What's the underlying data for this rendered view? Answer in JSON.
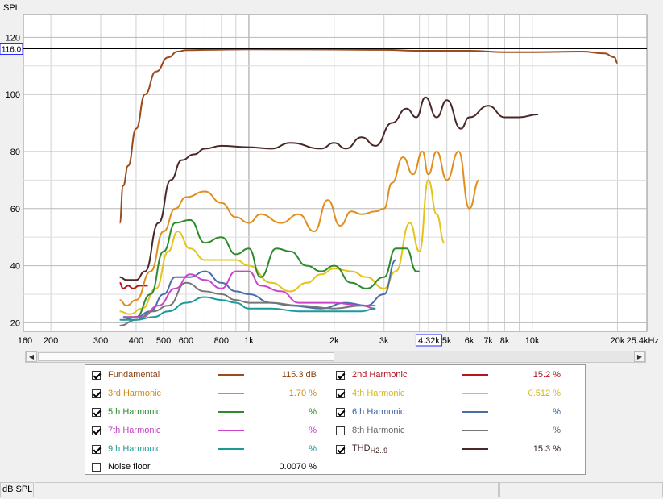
{
  "chart_data": {
    "type": "line",
    "ylabel": "SPL",
    "x_scale": "log",
    "xlim": [
      160,
      25400
    ],
    "ylim": [
      17,
      128
    ],
    "grid": true,
    "x_ticks": [
      160,
      200,
      300,
      400,
      500,
      600,
      800,
      1000,
      2000,
      3000,
      4000,
      5000,
      6000,
      7000,
      8000,
      10000,
      20000,
      25400
    ],
    "x_tick_labels": [
      "160",
      "200",
      "300",
      "400",
      "500",
      "600",
      "800",
      "1k",
      "2k",
      "3k",
      "",
      "5k",
      "6k",
      "7k",
      "8k",
      "10k",
      "20k",
      "25.4kHz"
    ],
    "y_ticks": [
      20,
      40,
      60,
      80,
      100,
      120
    ],
    "y_tick_labels": [
      "20",
      "40",
      "60",
      "80",
      "100",
      "120"
    ],
    "cursor": {
      "x": 4320,
      "y": 116.0,
      "x_label": "4.32k",
      "y_label": "116.0"
    },
    "series": [
      {
        "name": "Fundamental",
        "color": "#9b4a1a",
        "points": [
          [
            350,
            55
          ],
          [
            360,
            68
          ],
          [
            375,
            75
          ],
          [
            400,
            88
          ],
          [
            430,
            100
          ],
          [
            470,
            108
          ],
          [
            520,
            113
          ],
          [
            560,
            115
          ],
          [
            600,
            115.5
          ],
          [
            700,
            115.6
          ],
          [
            1000,
            115.8
          ],
          [
            2000,
            115.7
          ],
          [
            3000,
            115.6
          ],
          [
            4000,
            115.3
          ],
          [
            6000,
            115.3
          ],
          [
            8000,
            114.8
          ],
          [
            10000,
            114.8
          ],
          [
            15000,
            115.0
          ],
          [
            18000,
            114.4
          ],
          [
            19500,
            113
          ],
          [
            20000,
            111
          ]
        ]
      },
      {
        "name": "2nd Harmonic",
        "color": "#b8141e",
        "points": [
          [
            350,
            34
          ],
          [
            360,
            32
          ],
          [
            375,
            33
          ],
          [
            390,
            32
          ],
          [
            410,
            33
          ],
          [
            440,
            33
          ]
        ]
      },
      {
        "name": "3rd Harmonic",
        "color": "#e08f1e",
        "points": [
          [
            350,
            28
          ],
          [
            370,
            26
          ],
          [
            400,
            28
          ],
          [
            450,
            38
          ],
          [
            500,
            52
          ],
          [
            550,
            60
          ],
          [
            600,
            64
          ],
          [
            700,
            66
          ],
          [
            800,
            62
          ],
          [
            900,
            57
          ],
          [
            1000,
            55
          ],
          [
            1100,
            58
          ],
          [
            1300,
            55
          ],
          [
            1500,
            58
          ],
          [
            1700,
            52
          ],
          [
            1900,
            63
          ],
          [
            2100,
            54
          ],
          [
            2300,
            59
          ],
          [
            2500,
            58
          ],
          [
            2800,
            59
          ],
          [
            3000,
            60
          ],
          [
            3200,
            69
          ],
          [
            3500,
            78
          ],
          [
            3800,
            72
          ],
          [
            4100,
            80
          ],
          [
            4300,
            72
          ],
          [
            4600,
            80
          ],
          [
            5000,
            70
          ],
          [
            5500,
            80
          ],
          [
            6000,
            60
          ],
          [
            6500,
            70
          ]
        ]
      },
      {
        "name": "4th Harmonic",
        "color": "#e3c41a",
        "points": [
          [
            350,
            24
          ],
          [
            380,
            23
          ],
          [
            420,
            25
          ],
          [
            470,
            32
          ],
          [
            520,
            45
          ],
          [
            560,
            52
          ],
          [
            620,
            46
          ],
          [
            700,
            42
          ],
          [
            800,
            42
          ],
          [
            900,
            42
          ],
          [
            1000,
            40
          ],
          [
            1200,
            34
          ],
          [
            1400,
            31
          ],
          [
            1600,
            34
          ],
          [
            1800,
            37
          ],
          [
            2000,
            39
          ],
          [
            2300,
            38
          ],
          [
            2600,
            36
          ],
          [
            3000,
            32
          ],
          [
            3300,
            38
          ],
          [
            3700,
            55
          ],
          [
            4000,
            45
          ],
          [
            4300,
            70
          ],
          [
            4600,
            58
          ],
          [
            4900,
            48
          ]
        ]
      },
      {
        "name": "5th Harmonic",
        "color": "#2d8a2d",
        "points": [
          [
            360,
            22
          ],
          [
            400,
            22
          ],
          [
            450,
            30
          ],
          [
            500,
            45
          ],
          [
            550,
            55
          ],
          [
            620,
            56
          ],
          [
            700,
            48
          ],
          [
            800,
            50
          ],
          [
            900,
            44
          ],
          [
            1000,
            46
          ],
          [
            1100,
            36
          ],
          [
            1250,
            46
          ],
          [
            1400,
            45
          ],
          [
            1600,
            40
          ],
          [
            1800,
            38
          ],
          [
            2000,
            40
          ],
          [
            2300,
            34
          ],
          [
            2600,
            32
          ],
          [
            3000,
            36
          ],
          [
            3300,
            46
          ],
          [
            3600,
            46
          ],
          [
            3900,
            38
          ],
          [
            4000,
            38
          ]
        ]
      },
      {
        "name": "6th Harmonic",
        "color": "#4a6ea8",
        "points": [
          [
            360,
            21
          ],
          [
            400,
            22
          ],
          [
            450,
            24
          ],
          [
            500,
            30
          ],
          [
            550,
            36
          ],
          [
            620,
            36
          ],
          [
            700,
            38
          ],
          [
            800,
            34
          ],
          [
            900,
            31
          ],
          [
            1000,
            30
          ],
          [
            1200,
            27
          ],
          [
            1400,
            26
          ],
          [
            1800,
            25
          ],
          [
            2200,
            27
          ],
          [
            2600,
            26
          ],
          [
            3000,
            30
          ],
          [
            3300,
            42
          ]
        ]
      },
      {
        "name": "7th Harmonic",
        "color": "#cc44cc",
        "points": [
          [
            360,
            22
          ],
          [
            420,
            22
          ],
          [
            480,
            26
          ],
          [
            550,
            32
          ],
          [
            620,
            37
          ],
          [
            700,
            35
          ],
          [
            800,
            32
          ],
          [
            900,
            38
          ],
          [
            1000,
            38
          ],
          [
            1100,
            33
          ],
          [
            1300,
            31
          ],
          [
            1500,
            27
          ],
          [
            2000,
            27
          ],
          [
            2500,
            26
          ],
          [
            2800,
            25
          ]
        ]
      },
      {
        "name": "8th Harmonic",
        "color": "#777777",
        "points": [
          [
            350,
            19
          ],
          [
            400,
            21
          ],
          [
            460,
            24
          ],
          [
            520,
            26
          ],
          [
            600,
            34
          ],
          [
            700,
            31
          ],
          [
            800,
            30
          ],
          [
            900,
            28
          ],
          [
            1000,
            27
          ],
          [
            1200,
            27
          ],
          [
            1500,
            26
          ],
          [
            2000,
            25
          ],
          [
            2500,
            26
          ],
          [
            2800,
            26
          ]
        ]
      },
      {
        "name": "9th Harmonic",
        "color": "#1a9a9a",
        "points": [
          [
            350,
            21
          ],
          [
            400,
            21
          ],
          [
            460,
            22
          ],
          [
            520,
            24
          ],
          [
            600,
            27
          ],
          [
            700,
            29
          ],
          [
            800,
            28
          ],
          [
            900,
            27
          ],
          [
            1000,
            25
          ],
          [
            1200,
            25
          ],
          [
            1500,
            24
          ],
          [
            2000,
            24
          ],
          [
            2500,
            24
          ],
          [
            2800,
            25
          ]
        ]
      },
      {
        "name": "THD H2..9",
        "color": "#4a2828",
        "points": [
          [
            350,
            36
          ],
          [
            370,
            35
          ],
          [
            400,
            35
          ],
          [
            430,
            38
          ],
          [
            480,
            55
          ],
          [
            530,
            70
          ],
          [
            580,
            77
          ],
          [
            640,
            79
          ],
          [
            700,
            81
          ],
          [
            800,
            82
          ],
          [
            1000,
            81.5
          ],
          [
            1200,
            81
          ],
          [
            1400,
            83
          ],
          [
            1800,
            81
          ],
          [
            2000,
            83
          ],
          [
            2200,
            81
          ],
          [
            2500,
            85
          ],
          [
            2800,
            82
          ],
          [
            3200,
            90
          ],
          [
            3600,
            95
          ],
          [
            3900,
            92
          ],
          [
            4200,
            99
          ],
          [
            4600,
            92
          ],
          [
            5000,
            98
          ],
          [
            5600,
            88
          ],
          [
            6000,
            92
          ],
          [
            7000,
            96
          ],
          [
            8000,
            92
          ],
          [
            9000,
            92
          ],
          [
            10500,
            93
          ]
        ]
      }
    ]
  },
  "legend": {
    "items": [
      {
        "label": "Fundamental",
        "value": "115.3 dB",
        "checked": true,
        "color": "#9b4a1a",
        "label_color": "#8a4010",
        "value_color": "#8a4010"
      },
      {
        "label": "2nd Harmonic",
        "value": "15.2 %",
        "checked": true,
        "color": "#b8141e",
        "label_color": "#b01020",
        "value_color": "#b01020"
      },
      {
        "label": "3rd Harmonic",
        "value": "1.70 %",
        "checked": true,
        "color": "#e08f1e",
        "label_color": "#d08818",
        "value_color": "#d08818"
      },
      {
        "label": "4th Harmonic",
        "value": "0.512 %",
        "checked": true,
        "color": "#e3c41a",
        "label_color": "#d4b614",
        "value_color": "#d4b614"
      },
      {
        "label": "5th Harmonic",
        "value": "%",
        "checked": true,
        "color": "#2d8a2d",
        "label_color": "#2d8a2d",
        "value_color": "#2d8a2d"
      },
      {
        "label": "6th Harmonic",
        "value": "%",
        "checked": true,
        "color": "#4a6ea8",
        "label_color": "#3e64a0",
        "value_color": "#3e64a0"
      },
      {
        "label": "7th Harmonic",
        "value": "%",
        "checked": true,
        "color": "#cc44cc",
        "label_color": "#c040c0",
        "value_color": "#c040c0"
      },
      {
        "label": "8th Harmonic",
        "value": "%",
        "checked": false,
        "color": "#777777",
        "label_color": "#666666",
        "value_color": "#666666"
      },
      {
        "label": "9th Harmonic",
        "value": "%",
        "checked": true,
        "color": "#1a9a9a",
        "label_color": "#1a9898",
        "value_color": "#1a9898"
      },
      {
        "label": "THD",
        "label_sub": "H2..9",
        "value": "15.3 %",
        "checked": true,
        "color": "#4a2828",
        "label_color": "#3a2020",
        "value_color": "#3a2020"
      },
      {
        "label": "Noise floor",
        "value": "0.0070 %",
        "checked": false,
        "color": "",
        "label_color": "#000000",
        "value_color": "#000000"
      }
    ]
  },
  "statusbar": {
    "unit": "dB SPL"
  }
}
